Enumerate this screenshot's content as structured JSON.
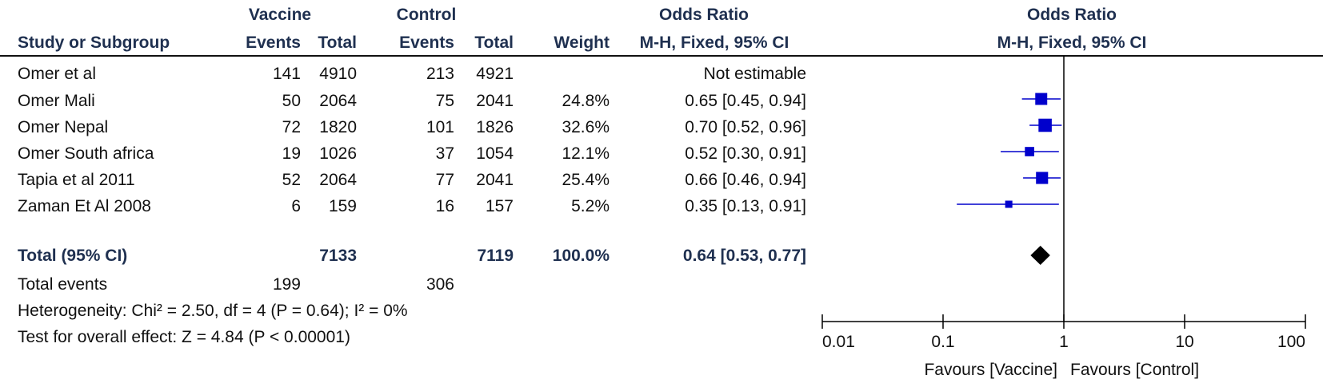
{
  "header": {
    "group1": "Vaccine",
    "group2": "Control",
    "effect_title": "Odds Ratio",
    "plot_title": "Odds Ratio",
    "plot_subtitle": "M-H, Fixed, 95% CI",
    "col_study": "Study or Subgroup",
    "col_events1": "Events",
    "col_total1": "Total",
    "col_events2": "Events",
    "col_total2": "Total",
    "col_weight": "Weight",
    "col_effect": "M-H, Fixed, 95% CI"
  },
  "studies": [
    {
      "name": "Omer et al",
      "e1": "141",
      "t1": "4910",
      "e2": "213",
      "t2": "4921",
      "weight": "",
      "ci": "Not estimable"
    },
    {
      "name": "Omer Mali",
      "e1": "50",
      "t1": "2064",
      "e2": "75",
      "t2": "2041",
      "weight": "24.8%",
      "ci": "0.65 [0.45, 0.94]"
    },
    {
      "name": "Omer Nepal",
      "e1": "72",
      "t1": "1820",
      "e2": "101",
      "t2": "1826",
      "weight": "32.6%",
      "ci": "0.70 [0.52, 0.96]"
    },
    {
      "name": "Omer South africa",
      "e1": "19",
      "t1": "1026",
      "e2": "37",
      "t2": "1054",
      "weight": "12.1%",
      "ci": "0.52 [0.30, 0.91]"
    },
    {
      "name": "Tapia et al 2011",
      "e1": "52",
      "t1": "2064",
      "e2": "77",
      "t2": "2041",
      "weight": "25.4%",
      "ci": "0.66 [0.46, 0.94]"
    },
    {
      "name": "Zaman Et Al 2008",
      "e1": "6",
      "t1": "159",
      "e2": "16",
      "t2": "157",
      "weight": "5.2%",
      "ci": "0.35 [0.13, 0.91]"
    }
  ],
  "total": {
    "label": "Total (95% CI)",
    "t1": "7133",
    "t2": "7119",
    "weight": "100.0%",
    "ci": "0.64 [0.53, 0.77]"
  },
  "total_events": {
    "label": "Total events",
    "e1": "199",
    "e2": "306"
  },
  "heterogeneity": "Heterogeneity: Chi² = 2.50, df = 4 (P = 0.64); I² = 0%",
  "overall_effect": "Test for overall effect: Z = 4.84 (P < 0.00001)",
  "axis": {
    "favours_left": "Favours [Vaccine]",
    "favours_right": "Favours [Control]"
  },
  "colors": {
    "marker": "#0000cc",
    "diamond": "#000000",
    "line": "#000000"
  },
  "chart_data": {
    "type": "forest",
    "title": "Odds Ratio",
    "subtitle": "M-H, Fixed, 95% CI",
    "scale": "log",
    "xlim": [
      0.01,
      100
    ],
    "ticks": [
      0.01,
      0.1,
      1,
      10,
      100
    ],
    "tick_labels": [
      "0.01",
      "0.1",
      "1",
      "10",
      "100"
    ],
    "null_line": 1,
    "series": [
      {
        "study": "Omer Mali",
        "or": 0.65,
        "lo": 0.45,
        "hi": 0.94,
        "weight": 24.8
      },
      {
        "study": "Omer Nepal",
        "or": 0.7,
        "lo": 0.52,
        "hi": 0.96,
        "weight": 32.6
      },
      {
        "study": "Omer South africa",
        "or": 0.52,
        "lo": 0.3,
        "hi": 0.91,
        "weight": 12.1
      },
      {
        "study": "Tapia et al 2011",
        "or": 0.66,
        "lo": 0.46,
        "hi": 0.94,
        "weight": 25.4
      },
      {
        "study": "Zaman Et Al 2008",
        "or": 0.35,
        "lo": 0.13,
        "hi": 0.91,
        "weight": 5.2
      }
    ],
    "pooled": {
      "or": 0.64,
      "lo": 0.53,
      "hi": 0.77
    }
  }
}
